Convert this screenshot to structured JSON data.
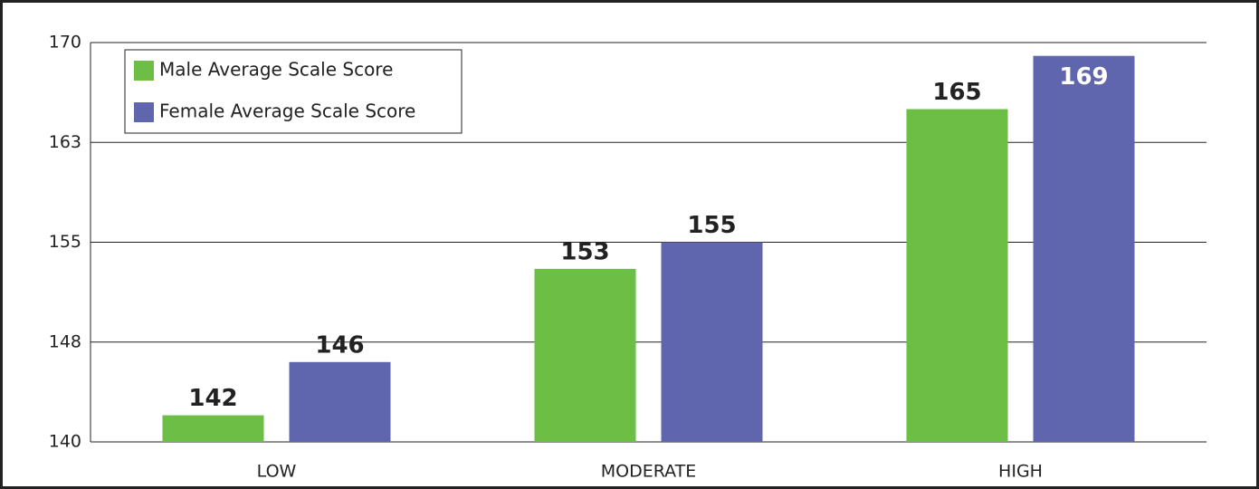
{
  "chart_data": {
    "type": "bar",
    "categories": [
      "LOW",
      "MODERATE",
      "HIGH"
    ],
    "series": [
      {
        "name": "Male Average Scale Score",
        "color": "#6dbe45",
        "values": [
          142,
          153,
          165
        ]
      },
      {
        "name": "Female Average Scale Score",
        "color": "#6066ad",
        "values": [
          146,
          155,
          169
        ]
      }
    ],
    "ylim": [
      140,
      170
    ],
    "yticks": [
      140,
      {
        "value": 147.5,
        "label": "148"
      },
      155,
      {
        "value": 162.5,
        "label": "163"
      },
      170
    ],
    "grid": true,
    "legend": "upper left"
  }
}
